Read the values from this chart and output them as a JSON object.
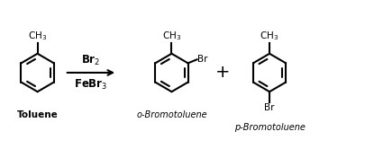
{
  "bg_color": "#ffffff",
  "text_color": "#000000",
  "toluene_label": "Toluene",
  "o_bromo_label": "o-Bromotoluene",
  "p_bromo_label": "p-Bromotoluene",
  "plus_sign": "+",
  "Br_label": "Br",
  "figsize": [
    4.05,
    1.66
  ],
  "dpi": 100
}
